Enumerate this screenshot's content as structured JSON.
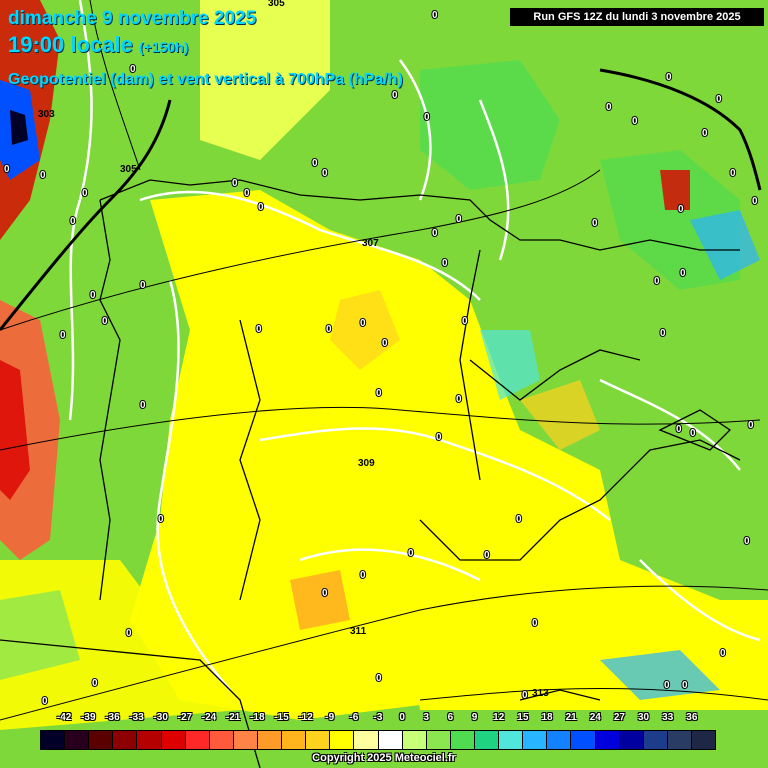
{
  "header": {
    "date": "dimanche 9 novembre 2025",
    "time": "19:00 locale",
    "lead": "(+150h)",
    "description": "Geopotentiel (dam) et vent vertical à 700hPa (hPa/h)"
  },
  "run_label": "Run GFS 12Z du lundi 3 novembre 2025",
  "legend": {
    "labels": [
      "-42",
      "-39",
      "-36",
      "-33",
      "-30",
      "-27",
      "-24",
      "-21",
      "-18",
      "-15",
      "-12",
      "-9",
      "-6",
      "-3",
      "0",
      "3",
      "6",
      "9",
      "12",
      "15",
      "18",
      "21",
      "24",
      "27",
      "30",
      "33",
      "36"
    ],
    "colors": [
      "#000028",
      "#28001e",
      "#5a0000",
      "#8c0000",
      "#b40000",
      "#dc0000",
      "#ff2828",
      "#ff5a3c",
      "#ff8246",
      "#ff9b28",
      "#ffb41e",
      "#ffd21e",
      "#ffff00",
      "#ffffa0",
      "#ffffff",
      "#c8ff78",
      "#8ce650",
      "#50dc50",
      "#1ed282",
      "#50e6dc",
      "#28b4ff",
      "#1482ff",
      "#0050ff",
      "#0000dc",
      "#0000a0",
      "#1e3c8c",
      "#283c64",
      "#1e2846"
    ]
  },
  "contour_labels": [
    "305",
    "303",
    "305",
    "307",
    "309",
    "311",
    "313"
  ],
  "zero_labels": [
    "0"
  ],
  "copyright": "Copyright 2025 Meteociel.fr"
}
